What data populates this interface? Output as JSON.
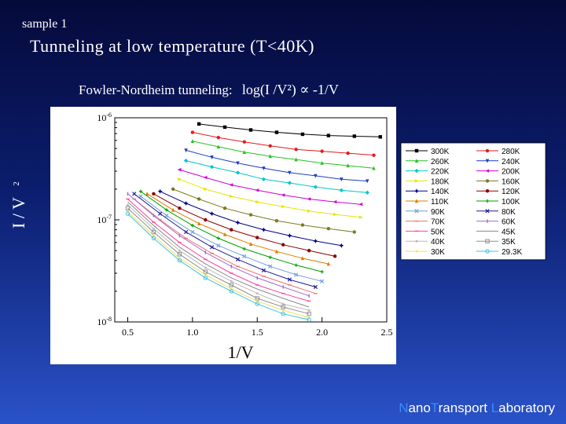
{
  "slide": {
    "sample_label": "sample 1",
    "title": "Tunneling at low temperature (T<40K)",
    "subtitle_text": "Fowler-Nordheim tunneling:",
    "subtitle_formula": "log(I /V²) ∝ -1/V",
    "lab_parts": [
      {
        "text": "N",
        "accent": true
      },
      {
        "text": "ano",
        "accent": false
      },
      {
        "text": "T",
        "accent": true
      },
      {
        "text": "ransport ",
        "accent": false
      },
      {
        "text": "L",
        "accent": true
      },
      {
        "text": "aboratory",
        "accent": false
      }
    ]
  },
  "chart_data": {
    "type": "scatter",
    "title": "",
    "xlabel": "1/V",
    "ylabel": "I/V²",
    "ylabel_parts": {
      "main": "I / V",
      "exp": "2"
    },
    "xlim": [
      0.4,
      2.5
    ],
    "ylim": [
      1e-08,
      1e-06
    ],
    "y_scale": "log",
    "x_ticks": [
      {
        "value": 0.5,
        "label": "0.5"
      },
      {
        "value": 1.0,
        "label": "1.0"
      },
      {
        "value": 1.5,
        "label": "1.5"
      },
      {
        "value": 2.0,
        "label": "2.0"
      },
      {
        "value": 2.5,
        "label": "2.5"
      }
    ],
    "y_ticks": [
      {
        "value": 1e-06,
        "mantissa": "10",
        "exp": "-6"
      },
      {
        "value": 1e-07,
        "mantissa": "10",
        "exp": "-7"
      },
      {
        "value": 1e-08,
        "mantissa": "10",
        "exp": "-8"
      }
    ],
    "legend_placement": "right",
    "series": [
      {
        "name": "300K",
        "color": "#000000",
        "marker": "square",
        "x": [
          1.05,
          1.25,
          1.45,
          1.65,
          1.85,
          2.05,
          2.25,
          2.45
        ],
        "y": [
          8.7e-07,
          8.1e-07,
          7.6e-07,
          7.2e-07,
          6.9e-07,
          6.7e-07,
          6.6e-07,
          6.5e-07
        ]
      },
      {
        "name": "280K",
        "color": "#e41a1c",
        "marker": "circle",
        "x": [
          1.0,
          1.2,
          1.4,
          1.6,
          1.8,
          2.0,
          2.2,
          2.4
        ],
        "y": [
          7.2e-07,
          6.4e-07,
          5.8e-07,
          5.3e-07,
          4.9e-07,
          4.7e-07,
          4.5e-07,
          4.3e-07
        ]
      },
      {
        "name": "260K",
        "color": "#22c422",
        "marker": "triangle-up",
        "x": [
          1.0,
          1.2,
          1.4,
          1.6,
          1.8,
          2.0,
          2.2,
          2.4
        ],
        "y": [
          5.9e-07,
          5.2e-07,
          4.6e-07,
          4.2e-07,
          3.9e-07,
          3.6e-07,
          3.4e-07,
          3.2e-07
        ]
      },
      {
        "name": "240K",
        "color": "#1f3fbf",
        "marker": "triangle-down",
        "x": [
          0.95,
          1.15,
          1.35,
          1.55,
          1.75,
          1.95,
          2.15,
          2.35
        ],
        "y": [
          4.8e-07,
          4.1e-07,
          3.6e-07,
          3.2e-07,
          2.9e-07,
          2.7e-07,
          2.5e-07,
          2.4e-07
        ]
      },
      {
        "name": "220K",
        "color": "#00c8c8",
        "marker": "diamond",
        "x": [
          0.95,
          1.15,
          1.35,
          1.55,
          1.75,
          1.95,
          2.15,
          2.35
        ],
        "y": [
          3.8e-07,
          3.3e-07,
          2.9e-07,
          2.5e-07,
          2.3e-07,
          2.1e-07,
          1.95e-07,
          1.85e-07
        ]
      },
      {
        "name": "200K",
        "color": "#d400d4",
        "marker": "triangle-left",
        "x": [
          0.9,
          1.1,
          1.3,
          1.5,
          1.7,
          1.9,
          2.1,
          2.3
        ],
        "y": [
          3.1e-07,
          2.6e-07,
          2.2e-07,
          1.95e-07,
          1.75e-07,
          1.6e-07,
          1.5e-07,
          1.42e-07
        ]
      },
      {
        "name": "180K",
        "color": "#e6e600",
        "marker": "triangle-right",
        "x": [
          0.9,
          1.1,
          1.3,
          1.5,
          1.7,
          1.9,
          2.1,
          2.3
        ],
        "y": [
          2.5e-07,
          2e-07,
          1.7e-07,
          1.5e-07,
          1.35e-07,
          1.22e-07,
          1.13e-07,
          1.06e-07
        ]
      },
      {
        "name": "160K",
        "color": "#7a7a1f",
        "marker": "hexagon",
        "x": [
          0.85,
          1.05,
          1.25,
          1.45,
          1.65,
          1.85,
          2.05,
          2.25
        ],
        "y": [
          2e-07,
          1.6e-07,
          1.3e-07,
          1.12e-07,
          9.8e-08,
          8.9e-08,
          8.2e-08,
          7.6e-08
        ]
      },
      {
        "name": "140K",
        "color": "#00008b",
        "marker": "star",
        "x": [
          0.75,
          0.95,
          1.15,
          1.35,
          1.55,
          1.75,
          1.95,
          2.15
        ],
        "y": [
          1.9e-07,
          1.45e-07,
          1.15e-07,
          9.4e-08,
          8e-08,
          7e-08,
          6.2e-08,
          5.6e-08
        ]
      },
      {
        "name": "120K",
        "color": "#8b0000",
        "marker": "pentagon",
        "x": [
          0.7,
          0.9,
          1.1,
          1.3,
          1.5,
          1.7,
          1.9,
          2.1
        ],
        "y": [
          1.8e-07,
          1.3e-07,
          1e-07,
          8e-08,
          6.7e-08,
          5.7e-08,
          5e-08,
          4.4e-08
        ]
      },
      {
        "name": "110K",
        "color": "#e07b00",
        "marker": "triangle-up",
        "x": [
          0.65,
          0.85,
          1.05,
          1.25,
          1.45,
          1.65,
          1.85,
          2.05
        ],
        "y": [
          1.8e-07,
          1.25e-07,
          9.2e-08,
          7.2e-08,
          5.8e-08,
          4.9e-08,
          4.2e-08,
          3.7e-08
        ]
      },
      {
        "name": "100K",
        "color": "#00a000",
        "marker": "plus",
        "x": [
          0.6,
          0.8,
          1.0,
          1.2,
          1.4,
          1.6,
          1.8,
          2.0
        ],
        "y": [
          1.9e-07,
          1.25e-07,
          8.8e-08,
          6.6e-08,
          5.2e-08,
          4.3e-08,
          3.6e-08,
          3.1e-08
        ]
      },
      {
        "name": "90K",
        "color": "#6f9fe0",
        "marker": "cross",
        "x": [
          0.6,
          0.8,
          1.0,
          1.2,
          1.4,
          1.6,
          1.8,
          2.0
        ],
        "y": [
          1.7e-07,
          1.1e-07,
          7.6e-08,
          5.6e-08,
          4.4e-08,
          3.5e-08,
          2.9e-08,
          2.5e-08
        ]
      },
      {
        "name": "80K",
        "color": "#1a1a9a",
        "marker": "cross",
        "x": [
          0.55,
          0.75,
          0.95,
          1.15,
          1.35,
          1.55,
          1.75,
          1.95
        ],
        "y": [
          1.8e-07,
          1.15e-07,
          7.6e-08,
          5.4e-08,
          4.1e-08,
          3.2e-08,
          2.6e-08,
          2.2e-08
        ]
      },
      {
        "name": "70K",
        "color": "#f07070",
        "marker": "dash",
        "x": [
          0.55,
          0.75,
          0.95,
          1.15,
          1.35,
          1.55,
          1.75,
          1.95
        ],
        "y": [
          1.6e-07,
          1e-07,
          6.6e-08,
          4.7e-08,
          3.5e-08,
          2.8e-08,
          2.3e-08,
          1.9e-08
        ]
      },
      {
        "name": "60K",
        "color": "#9a6fd0",
        "marker": "bar",
        "x": [
          0.5,
          0.7,
          0.9,
          1.1,
          1.3,
          1.5,
          1.7,
          1.9
        ],
        "y": [
          1.8e-07,
          1.1e-07,
          7e-08,
          4.8e-08,
          3.5e-08,
          2.7e-08,
          2.2e-08,
          1.8e-08
        ]
      },
      {
        "name": "50K",
        "color": "#ff3fa0",
        "marker": "dash",
        "x": [
          0.5,
          0.7,
          0.9,
          1.1,
          1.3,
          1.5,
          1.7,
          1.9
        ],
        "y": [
          1.6e-07,
          9.5e-08,
          6e-08,
          4.1e-08,
          3e-08,
          2.3e-08,
          1.9e-08,
          1.6e-08
        ]
      },
      {
        "name": "45K",
        "color": "#8a8a8a",
        "marker": "none",
        "x": [
          0.5,
          0.7,
          0.9,
          1.1,
          1.3,
          1.5,
          1.7,
          1.9
        ],
        "y": [
          1.5e-07,
          8.8e-08,
          5.4e-08,
          3.7e-08,
          2.7e-08,
          2.1e-08,
          1.7e-08,
          1.4e-08
        ]
      },
      {
        "name": "40K",
        "color": "#b8b8b8",
        "marker": "dot",
        "x": [
          0.5,
          0.7,
          0.9,
          1.1,
          1.3,
          1.5,
          1.7,
          1.9
        ],
        "y": [
          1.4e-07,
          8.2e-08,
          5e-08,
          3.4e-08,
          2.5e-08,
          1.9e-08,
          1.5e-08,
          1.3e-08
        ]
      },
      {
        "name": "35K",
        "color": "#909090",
        "marker": "square-open",
        "x": [
          0.5,
          0.7,
          0.9,
          1.1,
          1.3,
          1.5,
          1.7,
          1.9
        ],
        "y": [
          1.3e-07,
          7.6e-08,
          4.6e-08,
          3.1e-08,
          2.3e-08,
          1.7e-08,
          1.4e-08,
          1.2e-08
        ]
      },
      {
        "name": "30K",
        "color": "#f0e060",
        "marker": "dot",
        "x": [
          0.5,
          0.7,
          0.9,
          1.1,
          1.3,
          1.5,
          1.7,
          1.9
        ],
        "y": [
          1.2e-07,
          7e-08,
          4.2e-08,
          2.9e-08,
          2.1e-08,
          1.6e-08,
          1.3e-08,
          1.1e-08
        ]
      },
      {
        "name": "29.3K",
        "color": "#40c0e0",
        "marker": "circle-open",
        "x": [
          0.5,
          0.7,
          0.9,
          1.1,
          1.3,
          1.5,
          1.7,
          1.9
        ],
        "y": [
          1.15e-07,
          6.6e-08,
          4e-08,
          2.7e-08,
          2e-08,
          1.5e-08,
          1.2e-08,
          1.05e-08
        ]
      }
    ]
  }
}
